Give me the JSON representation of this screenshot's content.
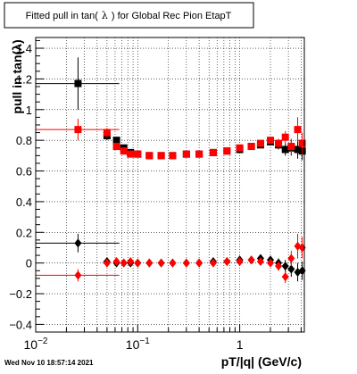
{
  "chart_data": {
    "type": "scatter",
    "title_pre": "Fitted pull in tan(",
    "title_sym": "λ",
    "title_post": ") for Global Rec Pion EtapT",
    "xlabel": "pT/|q| (GeV/c)",
    "ylabel": "pull in tan(λ)",
    "x_scale": "log",
    "xlim": [
      0.01,
      4.3
    ],
    "ylim": [
      -0.45,
      1.47
    ],
    "grid": true,
    "x_ticks": [
      {
        "v": 0.01,
        "base": "10",
        "exp": "−2"
      },
      {
        "v": 0.1,
        "base": "10",
        "exp": "−1"
      },
      {
        "v": 1,
        "base": "1",
        "exp": ""
      }
    ],
    "y_ticks": [
      {
        "v": -0.4,
        "label": "−0.4"
      },
      {
        "v": -0.2,
        "label": "−0.2"
      },
      {
        "v": 0,
        "label": "0"
      },
      {
        "v": 0.2,
        "label": "0.2"
      },
      {
        "v": 0.4,
        "label": "0.4"
      },
      {
        "v": 0.6,
        "label": "0.6"
      },
      {
        "v": 0.8,
        "label": "0.8"
      },
      {
        "v": 1,
        "label": "1"
      },
      {
        "v": 1.2,
        "label": "1.2"
      },
      {
        "v": 1.4,
        "label": "1.4"
      }
    ],
    "series": [
      {
        "color": "#000000",
        "marker": "square",
        "points": [
          [
            0.026,
            1.17,
            0.016,
            0.04,
            0.17
          ],
          [
            0.05,
            0.83,
            0.004,
            0.003,
            0.03
          ],
          [
            0.062,
            0.8,
            0.003,
            0.003,
            0.02
          ],
          [
            0.073,
            0.75,
            0.003,
            0.003,
            0.02
          ],
          [
            0.085,
            0.72,
            0.003,
            0.003,
            0.015
          ],
          [
            0.1,
            0.71,
            0.003,
            0.003,
            0.01
          ],
          [
            0.13,
            0.7,
            0.003,
            0.003,
            0.01
          ],
          [
            0.17,
            0.7,
            0.003,
            0.003,
            0.01
          ],
          [
            0.22,
            0.7,
            0.003,
            0.003,
            0.01
          ],
          [
            0.3,
            0.71,
            0.003,
            0.003,
            0.01
          ],
          [
            0.4,
            0.71,
            0.003,
            0.003,
            0.01
          ],
          [
            0.55,
            0.72,
            0.003,
            0.003,
            0.01
          ],
          [
            0.75,
            0.73,
            0.003,
            0.003,
            0.01
          ],
          [
            1.0,
            0.74,
            0.003,
            0.003,
            0.01
          ],
          [
            1.3,
            0.76,
            0.003,
            0.003,
            0.015
          ],
          [
            1.6,
            0.77,
            0.003,
            0.003,
            0.02
          ],
          [
            2.0,
            0.79,
            0.003,
            0.003,
            0.02
          ],
          [
            2.4,
            0.77,
            0.003,
            0.003,
            0.03
          ],
          [
            2.8,
            0.74,
            0.003,
            0.003,
            0.04
          ],
          [
            3.2,
            0.75,
            0.003,
            0.003,
            0.05
          ],
          [
            3.7,
            0.74,
            0.003,
            0.003,
            0.06
          ],
          [
            4.1,
            0.73,
            0.003,
            0.003,
            0.06
          ]
        ]
      },
      {
        "color": "#ff0000",
        "marker": "square",
        "points": [
          [
            0.026,
            0.87,
            0.016,
            0.04,
            0.07
          ],
          [
            0.05,
            0.85,
            0.004,
            0.003,
            0.03
          ],
          [
            0.062,
            0.76,
            0.003,
            0.003,
            0.02
          ],
          [
            0.073,
            0.73,
            0.003,
            0.003,
            0.02
          ],
          [
            0.085,
            0.71,
            0.003,
            0.003,
            0.015
          ],
          [
            0.1,
            0.71,
            0.003,
            0.003,
            0.01
          ],
          [
            0.13,
            0.7,
            0.003,
            0.003,
            0.01
          ],
          [
            0.17,
            0.7,
            0.003,
            0.003,
            0.01
          ],
          [
            0.22,
            0.7,
            0.003,
            0.003,
            0.01
          ],
          [
            0.3,
            0.71,
            0.003,
            0.003,
            0.01
          ],
          [
            0.4,
            0.71,
            0.003,
            0.003,
            0.01
          ],
          [
            0.55,
            0.72,
            0.003,
            0.003,
            0.01
          ],
          [
            0.75,
            0.73,
            0.003,
            0.003,
            0.01
          ],
          [
            1.0,
            0.75,
            0.003,
            0.003,
            0.01
          ],
          [
            1.3,
            0.76,
            0.003,
            0.003,
            0.015
          ],
          [
            1.6,
            0.78,
            0.003,
            0.003,
            0.02
          ],
          [
            2.0,
            0.8,
            0.003,
            0.003,
            0.02
          ],
          [
            2.4,
            0.78,
            0.003,
            0.003,
            0.03
          ],
          [
            2.8,
            0.82,
            0.003,
            0.003,
            0.04
          ],
          [
            3.2,
            0.76,
            0.003,
            0.003,
            0.05
          ],
          [
            3.7,
            0.87,
            0.003,
            0.003,
            0.08
          ],
          [
            4.1,
            0.78,
            0.003,
            0.003,
            0.07
          ]
        ]
      },
      {
        "color": "#000000",
        "marker": "diamond",
        "points": [
          [
            0.026,
            0.13,
            0.016,
            0.04,
            0.06
          ],
          [
            0.05,
            0.01,
            0.004,
            0.003,
            0.02
          ],
          [
            0.062,
            0.0,
            0.003,
            0.003,
            0.015
          ],
          [
            0.073,
            0.0,
            0.003,
            0.003,
            0.01
          ],
          [
            0.085,
            0.0,
            0.003,
            0.003,
            0.01
          ],
          [
            0.1,
            0.0,
            0.003,
            0.003,
            0.01
          ],
          [
            0.13,
            0.0,
            0.003,
            0.003,
            0.01
          ],
          [
            0.17,
            0.0,
            0.003,
            0.003,
            0.01
          ],
          [
            0.22,
            0.0,
            0.003,
            0.003,
            0.01
          ],
          [
            0.3,
            0.0,
            0.003,
            0.003,
            0.01
          ],
          [
            0.4,
            0.0,
            0.003,
            0.003,
            0.01
          ],
          [
            0.55,
            0.01,
            0.003,
            0.003,
            0.01
          ],
          [
            0.75,
            0.01,
            0.003,
            0.003,
            0.01
          ],
          [
            1.0,
            0.02,
            0.003,
            0.003,
            0.01
          ],
          [
            1.3,
            0.02,
            0.003,
            0.003,
            0.015
          ],
          [
            1.6,
            0.03,
            0.003,
            0.003,
            0.02
          ],
          [
            2.0,
            0.02,
            0.003,
            0.003,
            0.02
          ],
          [
            2.4,
            0.0,
            0.003,
            0.003,
            0.03
          ],
          [
            2.8,
            -0.02,
            0.003,
            0.003,
            0.04
          ],
          [
            3.2,
            -0.04,
            0.003,
            0.003,
            0.05
          ],
          [
            3.7,
            -0.06,
            0.003,
            0.003,
            0.06
          ],
          [
            4.1,
            -0.05,
            0.003,
            0.003,
            0.06
          ]
        ]
      },
      {
        "color": "#ff0000",
        "marker": "diamond",
        "points": [
          [
            0.026,
            -0.08,
            0.016,
            0.04,
            0.04
          ],
          [
            0.05,
            0.0,
            0.004,
            0.003,
            0.02
          ],
          [
            0.062,
            0.01,
            0.003,
            0.003,
            0.015
          ],
          [
            0.073,
            0.0,
            0.003,
            0.003,
            0.01
          ],
          [
            0.085,
            0.01,
            0.003,
            0.003,
            0.01
          ],
          [
            0.1,
            0.0,
            0.003,
            0.003,
            0.01
          ],
          [
            0.13,
            0.0,
            0.003,
            0.003,
            0.01
          ],
          [
            0.17,
            0.0,
            0.003,
            0.003,
            0.01
          ],
          [
            0.22,
            0.0,
            0.003,
            0.003,
            0.01
          ],
          [
            0.3,
            0.0,
            0.003,
            0.003,
            0.01
          ],
          [
            0.4,
            0.0,
            0.003,
            0.003,
            0.01
          ],
          [
            0.55,
            0.0,
            0.003,
            0.003,
            0.01
          ],
          [
            0.75,
            0.01,
            0.003,
            0.003,
            0.01
          ],
          [
            1.0,
            0.01,
            0.003,
            0.003,
            0.01
          ],
          [
            1.3,
            0.02,
            0.003,
            0.003,
            0.015
          ],
          [
            1.6,
            0.01,
            0.003,
            0.003,
            0.02
          ],
          [
            2.0,
            0.0,
            0.003,
            0.003,
            0.02
          ],
          [
            2.4,
            -0.02,
            0.003,
            0.003,
            0.03
          ],
          [
            2.8,
            -0.09,
            0.003,
            0.003,
            0.04
          ],
          [
            3.2,
            0.03,
            0.003,
            0.003,
            0.05
          ],
          [
            3.7,
            0.11,
            0.003,
            0.003,
            0.08
          ],
          [
            4.1,
            0.1,
            0.003,
            0.003,
            0.07
          ]
        ]
      }
    ]
  },
  "footer": {
    "timestamp": "Wed Nov 10 18:57:14 2021"
  }
}
